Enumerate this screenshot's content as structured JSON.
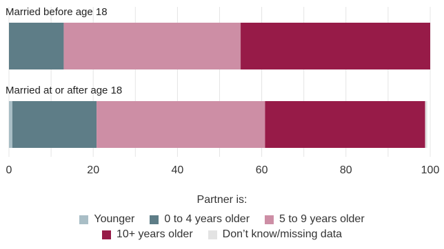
{
  "chart_data": {
    "type": "bar",
    "orientation": "horizontal",
    "stacked": true,
    "categories": [
      "Married before age 18",
      "Married at or after age 18"
    ],
    "series": [
      {
        "name": "Younger",
        "color": "#A9BEC6",
        "values": [
          0,
          0.8
        ]
      },
      {
        "name": "0 to 4 years older",
        "color": "#5E7D87",
        "values": [
          13,
          20
        ]
      },
      {
        "name": "5 to 9 years older",
        "color": "#CD8EA5",
        "values": [
          42,
          40
        ]
      },
      {
        "name": "10+ years older",
        "color": "#971B48",
        "values": [
          45,
          38
        ]
      },
      {
        "name": "Don’t know/missing data",
        "color": "#E3E3E3",
        "values": [
          0,
          0.5
        ]
      }
    ],
    "xlim": [
      0,
      100
    ],
    "xticks": [
      "0",
      "20",
      "40",
      "60",
      "80",
      "100"
    ],
    "grid": true,
    "legend_title": "Partner is:",
    "legend_position": "bottom"
  }
}
